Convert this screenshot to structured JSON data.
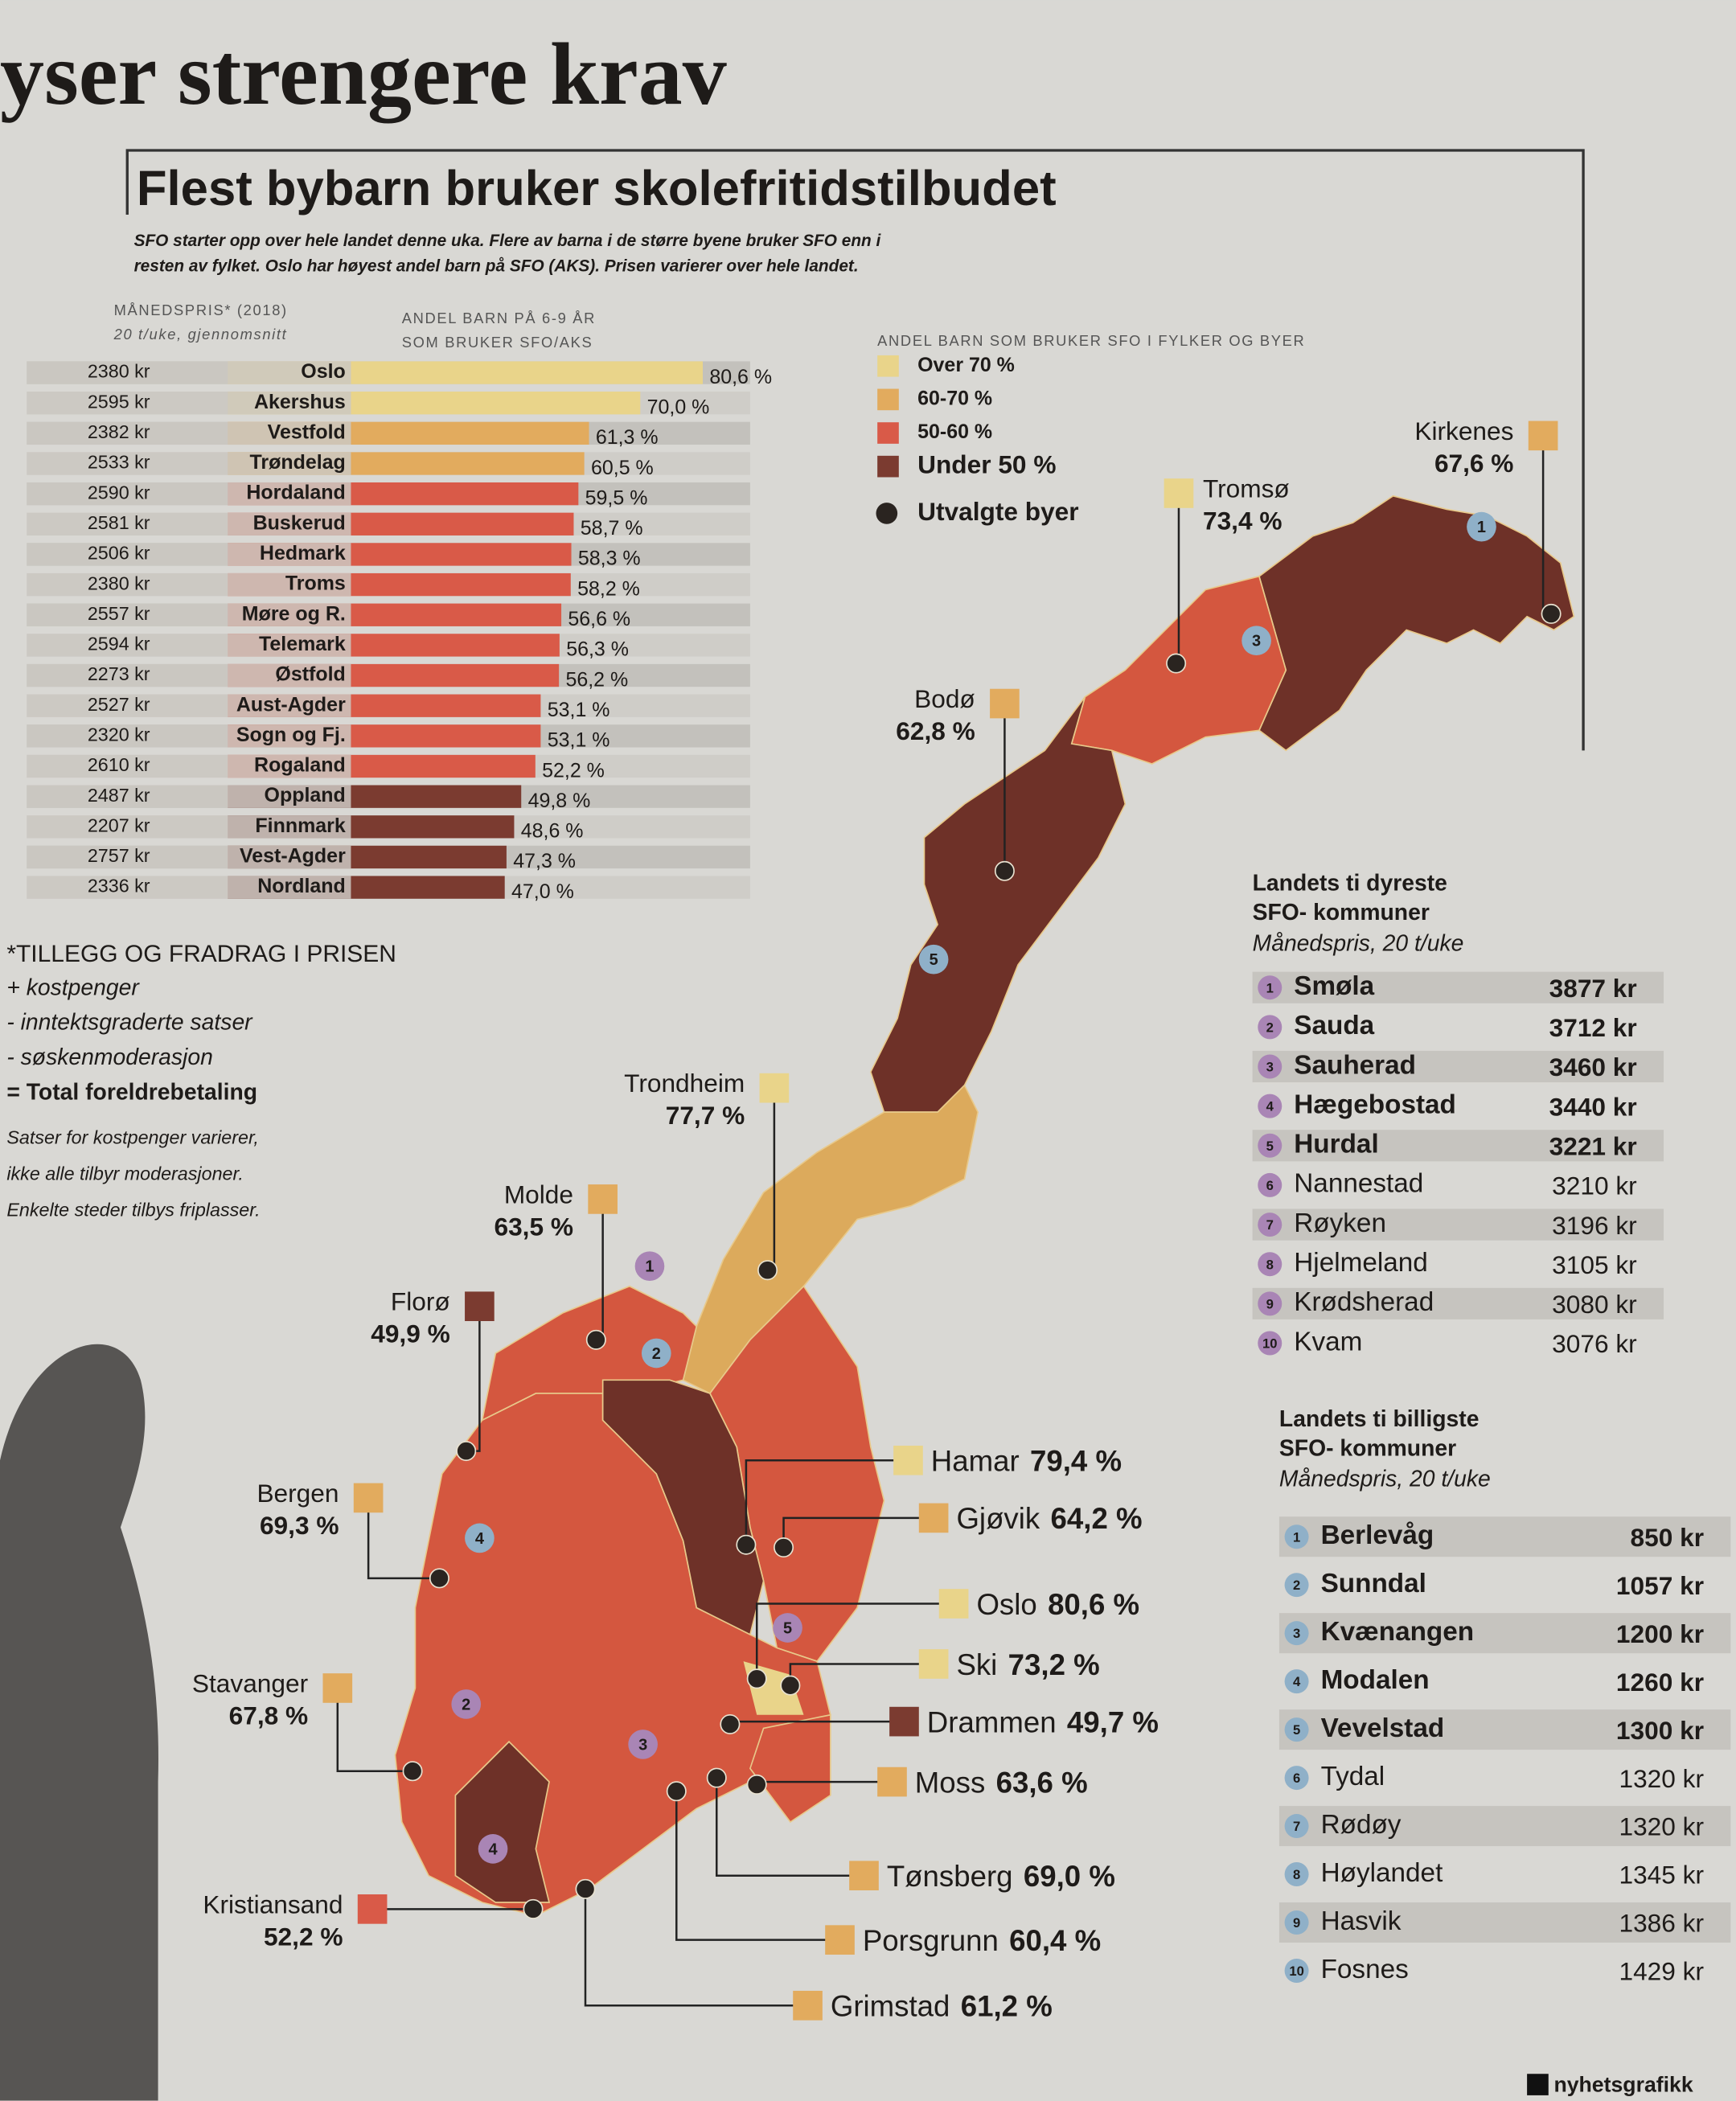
{
  "header": {
    "headline": "yser strengere krav",
    "title": "Flest bybarn bruker skolefritidstilbudet",
    "subtitle_lines": [
      "SFO starter opp over hele landet denne uka. Flere av barna i de større byene bruker SFO enn i",
      "resten av fylket. Oslo har høyest andel barn på SFO (AKS). Prisen varierer over hele landet."
    ]
  },
  "chart_data": {
    "type": "bar",
    "orientation": "horizontal",
    "price_heading": "MÅNEDSPRIS* (2018)",
    "price_subheading": "20 t/uke, gjennomsnitt",
    "value_heading_lines": [
      "ANDEL BARN PÅ 6-9 ÅR",
      "SOM BRUKER SFO/AKS"
    ],
    "categories": [
      "Oslo",
      "Akershus",
      "Vestfold",
      "Trøndelag",
      "Hordaland",
      "Buskerud",
      "Hedmark",
      "Troms",
      "Møre og R.",
      "Telemark",
      "Østfold",
      "Aust-Agder",
      "Sogn og Fj.",
      "Rogaland",
      "Oppland",
      "Finnmark",
      "Vest-Agder",
      "Nordland"
    ],
    "prices": [
      "2380 kr",
      "2595 kr",
      "2382 kr",
      "2533 kr",
      "2590 kr",
      "2581 kr",
      "2506 kr",
      "2380 kr",
      "2557 kr",
      "2594 kr",
      "2273 kr",
      "2527 kr",
      "2320 kr",
      "2610 kr",
      "2487 kr",
      "2207 kr",
      "2757 kr",
      "2336 kr"
    ],
    "values": [
      80.6,
      70.0,
      61.3,
      60.5,
      59.5,
      58.7,
      58.3,
      58.2,
      56.6,
      56.3,
      56.2,
      53.1,
      53.1,
      52.2,
      49.8,
      48.6,
      47.3,
      47.0
    ],
    "value_labels": [
      "80,6 %",
      "70,0 %",
      "61,3 %",
      "60,5 %",
      "59,5 %",
      "58,7 %",
      "58,3 %",
      "58,2 %",
      "56,6 %",
      "56,3 %",
      "56,2 %",
      "53,1 %",
      "53,1 %",
      "52,2 %",
      "49,8 %",
      "48,6 %",
      "47,3 %",
      "47,0 %"
    ],
    "colors": [
      "#e9d48a",
      "#e9d48a",
      "#e2ab5e",
      "#e2ab5e",
      "#d95a48",
      "#d95a48",
      "#d95a48",
      "#d95a48",
      "#d95a48",
      "#d95a48",
      "#d95a48",
      "#d95a48",
      "#d95a48",
      "#d95a48",
      "#7b3b30",
      "#7b3b30",
      "#7b3b30",
      "#7b3b30"
    ],
    "xlim": [
      0,
      100
    ]
  },
  "legend": {
    "title": "ANDEL BARN SOM BRUKER SFO I FYLKER OG BYER",
    "items": [
      {
        "label": "Over 70 %",
        "color": "#e9d48a",
        "shape": "square"
      },
      {
        "label": "60-70 %",
        "color": "#e2ab5e",
        "shape": "square"
      },
      {
        "label": "50-60 %",
        "color": "#d95a48",
        "shape": "square"
      },
      {
        "label": "Under 50 %",
        "color": "#7b3b30",
        "shape": "square"
      },
      {
        "label": "Utvalgte byer",
        "color": "#2a2420",
        "shape": "dot"
      }
    ]
  },
  "cities": [
    {
      "name": "Kirkenes",
      "share": "67,6 %",
      "color": "#e2ab5e"
    },
    {
      "name": "Tromsø",
      "share": "73,4 %",
      "color": "#e9d48a"
    },
    {
      "name": "Bodø",
      "share": "62,8 %",
      "color": "#e2ab5e"
    },
    {
      "name": "Trondheim",
      "share": "77,7 %",
      "color": "#e9d48a"
    },
    {
      "name": "Molde",
      "share": "63,5 %",
      "color": "#e2ab5e"
    },
    {
      "name": "Florø",
      "share": "49,9 %",
      "color": "#7b3b30"
    },
    {
      "name": "Bergen",
      "share": "69,3 %",
      "color": "#e2ab5e"
    },
    {
      "name": "Stavanger",
      "share": "67,8 %",
      "color": "#e2ab5e"
    },
    {
      "name": "Kristiansand",
      "share": "52,2 %",
      "color": "#d95a48"
    },
    {
      "name": "Hamar",
      "share": "79,4 %",
      "color": "#e9d48a"
    },
    {
      "name": "Gjøvik",
      "share": "64,2 %",
      "color": "#e2ab5e"
    },
    {
      "name": "Oslo",
      "share": "80,6 %",
      "color": "#e9d48a"
    },
    {
      "name": "Ski",
      "share": "73,2 %",
      "color": "#e9d48a"
    },
    {
      "name": "Drammen",
      "share": "49,7 %",
      "color": "#7b3b30"
    },
    {
      "name": "Moss",
      "share": "63,6 %",
      "color": "#e2ab5e"
    },
    {
      "name": "Tønsberg",
      "share": "69,0 %",
      "color": "#e2ab5e"
    },
    {
      "name": "Porsgrunn",
      "share": "60,4 %",
      "color": "#e2ab5e"
    },
    {
      "name": "Grimstad",
      "share": "61,2 %",
      "color": "#e2ab5e"
    }
  ],
  "notes": {
    "heading": "*TILLEGG OG FRADRAG I PRISEN",
    "lines": [
      "+ kostpenger",
      "- inntektsgraderte satser",
      "- søskenmoderasjon",
      "= Total foreldrebetaling"
    ],
    "footnote": [
      "Satser for kostpenger varierer,",
      "ikke alle tilbyr moderasjoner.",
      "Enkelte steder tilbys friplasser."
    ]
  },
  "expensive": {
    "title_lines": [
      "Landets ti dyreste",
      "SFO- kommuner"
    ],
    "subtitle": "Månedspris, 20 t/uke",
    "rows": [
      {
        "rank": 1,
        "name": "Smøla",
        "price": "3877 kr"
      },
      {
        "rank": 2,
        "name": "Sauda",
        "price": "3712 kr"
      },
      {
        "rank": 3,
        "name": "Sauherad",
        "price": "3460 kr"
      },
      {
        "rank": 4,
        "name": "Hægebostad",
        "price": "3440 kr"
      },
      {
        "rank": 5,
        "name": "Hurdal",
        "price": "3221 kr"
      },
      {
        "rank": 6,
        "name": "Nannestad",
        "price": "3210 kr"
      },
      {
        "rank": 7,
        "name": "Røyken",
        "price": "3196 kr"
      },
      {
        "rank": 8,
        "name": "Hjelmeland",
        "price": "3105 kr"
      },
      {
        "rank": 9,
        "name": "Krødsherad",
        "price": "3080 kr"
      },
      {
        "rank": 10,
        "name": "Kvam",
        "price": "3076 kr"
      }
    ]
  },
  "cheap": {
    "title_lines": [
      "Landets ti billigste",
      "SFO- kommuner"
    ],
    "subtitle": "Månedspris, 20 t/uke",
    "rows": [
      {
        "rank": 1,
        "name": "Berlevåg",
        "price": "850 kr"
      },
      {
        "rank": 2,
        "name": "Sunndal",
        "price": "1057 kr"
      },
      {
        "rank": 3,
        "name": "Kvænangen",
        "price": "1200 kr"
      },
      {
        "rank": 4,
        "name": "Modalen",
        "price": "1260 kr"
      },
      {
        "rank": 5,
        "name": "Vevelstad",
        "price": "1300 kr"
      },
      {
        "rank": 6,
        "name": "Tydal",
        "price": "1320 kr"
      },
      {
        "rank": 7,
        "name": "Rødøy",
        "price": "1320 kr"
      },
      {
        "rank": 8,
        "name": "Høylandet",
        "price": "1345 kr"
      },
      {
        "rank": 9,
        "name": "Hasvik",
        "price": "1386 kr"
      },
      {
        "rank": 10,
        "name": "Fosnes",
        "price": "1429 kr"
      }
    ]
  },
  "footer": "nyhetsgrafikk"
}
